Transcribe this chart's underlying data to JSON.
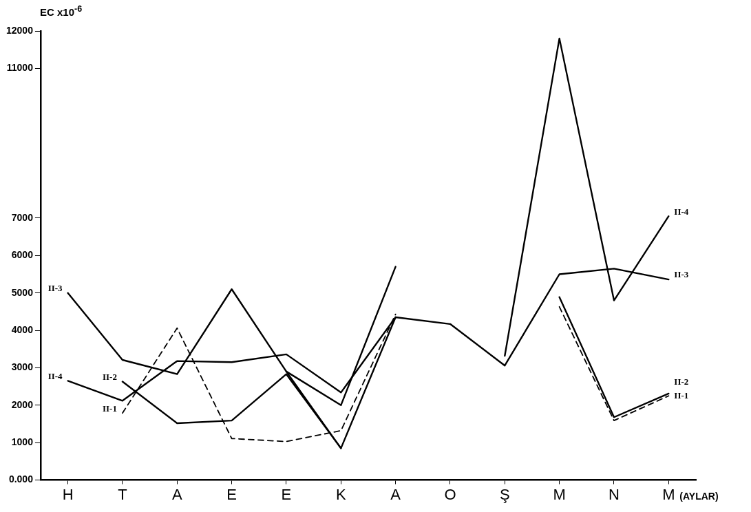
{
  "chart_data": {
    "type": "line",
    "ylabel": "EC x10$^{-6}$",
    "xlabel": "(AYLAR)",
    "categories": [
      "H",
      "T",
      "A",
      "E",
      "E",
      "K",
      "A",
      "O",
      "Ş",
      "M",
      "N",
      "M"
    ],
    "ylim": [
      0,
      12000
    ],
    "yticks": [
      {
        "value": 0,
        "label": "0.000"
      },
      1000,
      2000,
      3000,
      4000,
      5000,
      6000,
      7000,
      11000,
      12000
    ],
    "grid": false,
    "legend": false,
    "marker": "none",
    "series": [
      {
        "name": "II-3",
        "color": "#000000",
        "line_style": "solid",
        "values": [
          5000,
          3210,
          2830,
          5100,
          2900,
          850,
          4350,
          4170,
          3060,
          5500,
          5650,
          5360
        ]
      },
      {
        "name": "II-2",
        "color": "#000000",
        "line_style": "solid",
        "values": [
          null,
          2630,
          1520,
          1590,
          2830,
          850,
          null,
          null,
          null,
          4890,
          1680,
          2310
        ]
      },
      {
        "name": "II-1",
        "color": "#000000",
        "line_style": "dashed",
        "values": [
          null,
          1790,
          4060,
          1110,
          1030,
          1320,
          4430,
          null,
          null,
          4630,
          1590,
          2250
        ]
      },
      {
        "name": "II-4",
        "color": "#000000",
        "line_style": "solid",
        "values": [
          2650,
          2120,
          3180,
          3150,
          3360,
          2340,
          4350,
          null,
          3320,
          11800,
          4800,
          7050
        ]
      },
      {
        "color": "#000000",
        "line_style": "solid",
        "values": [
          null,
          null,
          null,
          null,
          2900,
          2000,
          5700,
          null,
          null,
          null,
          null,
          null
        ]
      }
    ]
  }
}
